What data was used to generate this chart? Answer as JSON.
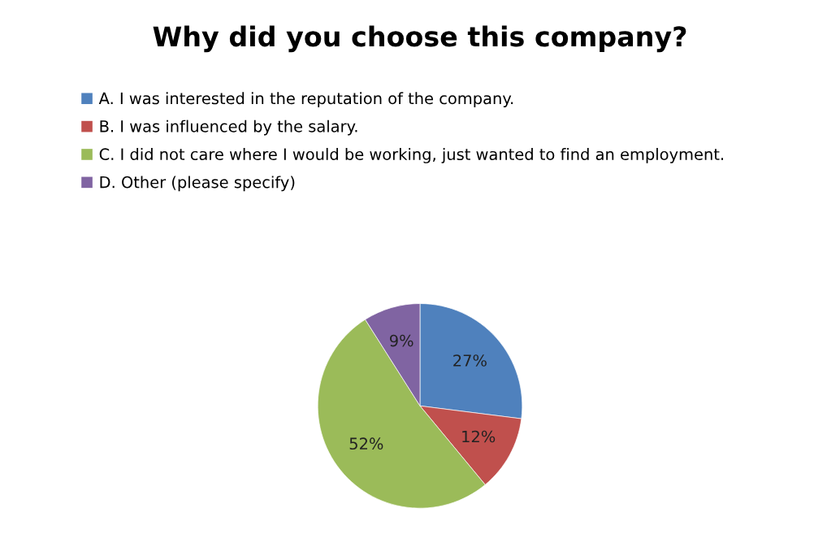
{
  "chart_data": {
    "type": "pie",
    "title": "Why did you choose this company?",
    "categories": [
      "A. I was interested in the reputation of the company.",
      "B. I was influenced by the salary.",
      "C. I did not care where I would be working, just wanted to find an employment.",
      "D. Other (please specify)"
    ],
    "values": [
      27,
      12,
      52,
      9
    ],
    "colors": [
      "#4f81bd",
      "#c0504d",
      "#9bbb59",
      "#8064a2"
    ],
    "value_labels": [
      "27%",
      "12%",
      "52%",
      "9%"
    ],
    "legend": "top"
  }
}
